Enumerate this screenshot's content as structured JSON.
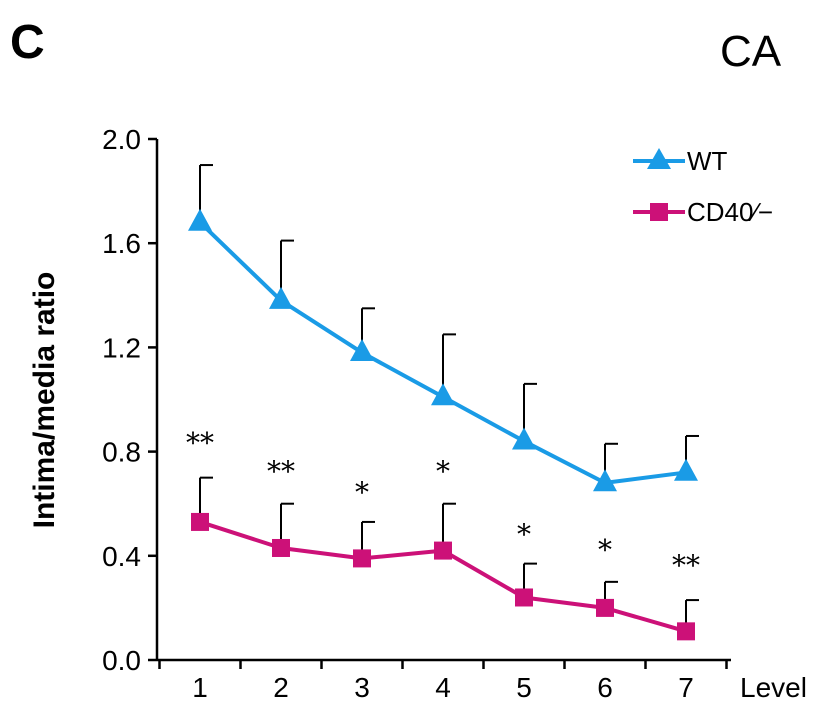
{
  "panel_letter": "C",
  "panel_label": "CA",
  "chart_data": {
    "type": "line",
    "title": "",
    "ylabel": "Intima/media ratio",
    "xlabel": "Level",
    "ylim": [
      0.0,
      2.0
    ],
    "yticks": [
      "0.0",
      "0.4",
      "0.8",
      "1.2",
      "1.6",
      "2.0"
    ],
    "yticks_values": [
      0.0,
      0.4,
      0.8,
      1.2,
      1.6,
      2.0
    ],
    "categories": [
      "1",
      "2",
      "3",
      "4",
      "5",
      "6",
      "7"
    ],
    "legend_position": "top-right",
    "error_bars": "upper only",
    "series": [
      {
        "name": "WT",
        "color": "#1a9be6",
        "marker": "triangle",
        "values": [
          1.68,
          1.38,
          1.18,
          1.01,
          0.84,
          0.68,
          0.72
        ],
        "error_upper": [
          1.9,
          1.61,
          1.35,
          1.25,
          1.06,
          0.83,
          0.86
        ]
      },
      {
        "name": "CD40∕−",
        "color": "#cc1178",
        "marker": "square",
        "values": [
          0.53,
          0.43,
          0.39,
          0.42,
          0.24,
          0.2,
          0.11
        ],
        "error_upper": [
          0.7,
          0.6,
          0.53,
          0.6,
          0.37,
          0.3,
          0.23
        ]
      }
    ],
    "significance": [
      {
        "label": "**",
        "value": 0.85
      },
      {
        "label": "**",
        "value": 0.74
      },
      {
        "label": "*",
        "value": 0.66
      },
      {
        "label": "*",
        "value": 0.74
      },
      {
        "label": "*",
        "value": 0.5
      },
      {
        "label": "*",
        "value": 0.44
      },
      {
        "label": "**",
        "value": 0.38
      }
    ]
  }
}
